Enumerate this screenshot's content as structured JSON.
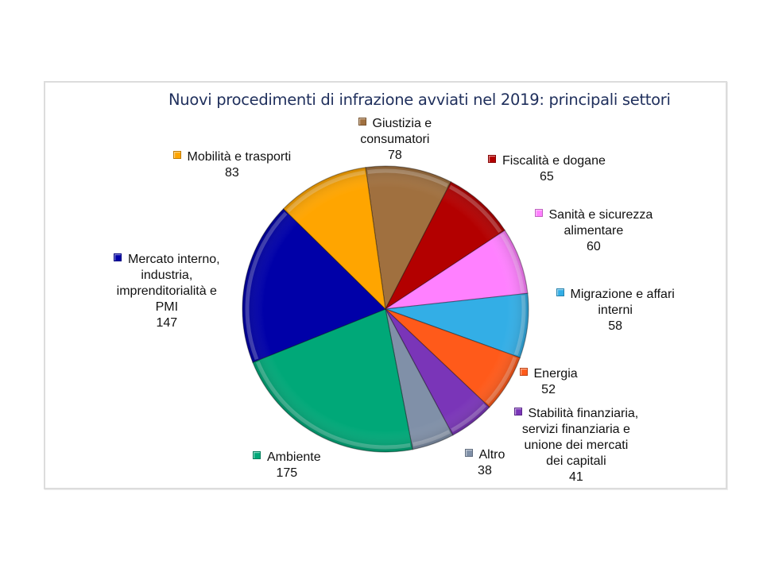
{
  "chart_data": {
    "type": "pie",
    "title": "Nuovi procedimenti di infrazione avviati nel 2019: principali settori",
    "start_angle_deg": -8,
    "direction": "clockwise",
    "slices": [
      {
        "label": [
          "Giustizia e",
          "consumatori"
        ],
        "value": 78,
        "color": "#a0703f"
      },
      {
        "label": [
          "Fiscalità e dogane"
        ],
        "value": 65,
        "color": "#b30000"
      },
      {
        "label": [
          "Sanità e sicurezza",
          "alimentare"
        ],
        "value": 60,
        "color": "#ff80ff"
      },
      {
        "label": [
          "Migrazione e affari",
          "interni"
        ],
        "value": 58,
        "color": "#33aee6"
      },
      {
        "label": [
          "Energia"
        ],
        "value": 52,
        "color": "#ff5a1a"
      },
      {
        "label": [
          "Stabilità finanziaria,",
          "servizi finanziaria e",
          "unione dei mercati",
          "dei capitali"
        ],
        "value": 41,
        "color": "#7a35b8"
      },
      {
        "label": [
          "Altro"
        ],
        "value": 38,
        "color": "#8090a8"
      },
      {
        "label": [
          "Ambiente"
        ],
        "value": 175,
        "color": "#00a878"
      },
      {
        "label": [
          "Mercato interno,",
          "industria,",
          "imprenditorialità e",
          "PMI"
        ],
        "value": 147,
        "color": "#0000a8"
      },
      {
        "label": [
          "Mobilità e trasporti"
        ],
        "value": 83,
        "color": "#ffa500"
      }
    ],
    "legend": "data-labels"
  }
}
